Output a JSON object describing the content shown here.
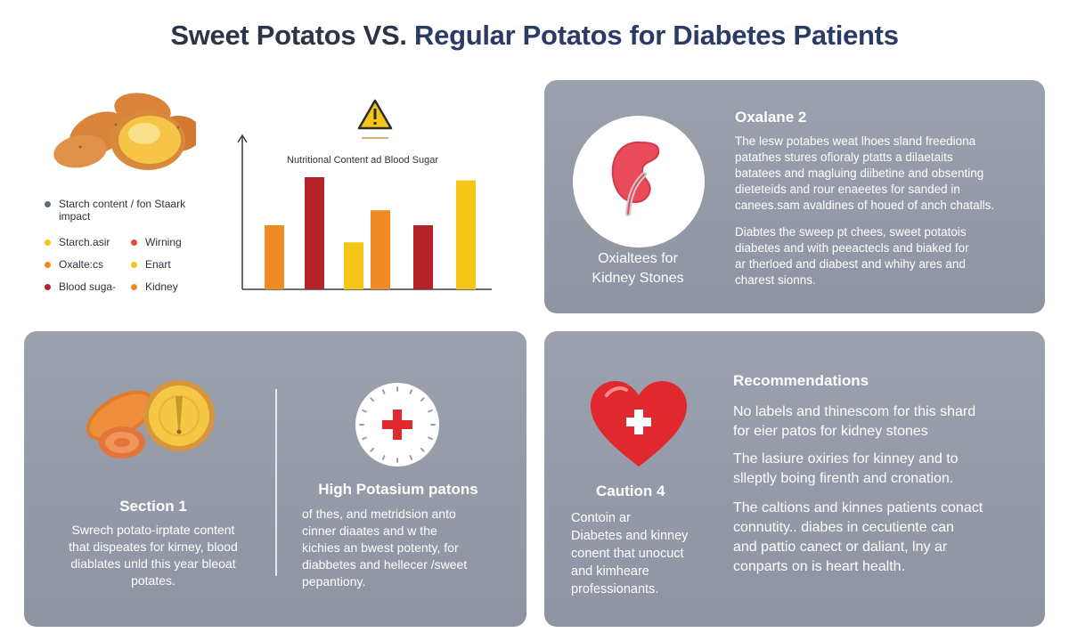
{
  "title": {
    "part1": "Sweet Potatos VS.",
    "part2": "Regular Potatos for Diabetes Patients"
  },
  "chart": {
    "warning_icon": "warning-triangle-icon",
    "title": "Nutritional Content ad Blood Sugar"
  },
  "chart_data": {
    "type": "bar",
    "title": "Nutritional Content ad Blood Sugar",
    "xlabel": "",
    "ylabel": "",
    "ylim": [
      0,
      10
    ],
    "grid": false,
    "legend": "left",
    "bars": [
      {
        "value": 6.0,
        "color": "#f08a24"
      },
      {
        "value": 10.5,
        "color": "#b5222a"
      },
      {
        "value": 4.4,
        "color": "#f5c518"
      },
      {
        "value": 7.4,
        "color": "#f08a24"
      },
      {
        "value": 6.0,
        "color": "#b5222a"
      },
      {
        "value": 10.2,
        "color": "#f5c518"
      }
    ]
  },
  "legend": {
    "starch_header_1": "Starch content / fon Staark",
    "starch_header_2": "impact",
    "header_color": "#5c6b80",
    "items": [
      {
        "label": "Starch.asir",
        "color": "#f5c518"
      },
      {
        "label": "Wirning",
        "color": "#e04a3a"
      },
      {
        "label": "Oxalte:cs",
        "color": "#f08a24"
      },
      {
        "label": "Enart",
        "color": "#f5c518"
      },
      {
        "label": "Blood suga-",
        "color": "#b5222a"
      },
      {
        "label": "Kidney",
        "color": "#f08a24"
      }
    ]
  },
  "panel_oxalate": {
    "icon": "kidney-icon",
    "caption_1": "Oxialtees for",
    "caption_2": "Kidney Stones",
    "heading": "Oxalane 2",
    "para1": [
      "The lesw potabes weat lhoes sland freediona",
      "patathes stures ofioraly ptatts a dilaetaits",
      "batatees and magluing diibetine and obsenting",
      "dieteteids and rour enaeetes for sanded in",
      "canees.sam avaldines of houed of anch chatalls."
    ],
    "para2": [
      "Diabtes the sweep pt chees, sweet potatois",
      "diabetes and with peeactecls and biaked for",
      "ar therloed and diabest and whihy ares and",
      "charest sionns."
    ]
  },
  "panel_section1": {
    "potato_icon": "sweet-potato-icon",
    "heading": "Section 1",
    "lines": [
      "Swrech potato-irptate content",
      "that dispeates for kirney, blood",
      "diablates unld this year bleoat",
      "potates."
    ],
    "medical_icon": "medical-cross-icon",
    "heading2": "High Potasium patons",
    "lines2": [
      "of thes, and metridsion anto",
      "cinner diaates and w the",
      "kichies an bwest potenty, for",
      "diabbetes and hellecer /sweet",
      "pepantiony."
    ]
  },
  "panel_recommend": {
    "heart_icon": "heart-medical-icon",
    "caution_heading": "Caution 4",
    "caution_lines": [
      "Contoin ar",
      "Diabetes and kinney",
      "conent that unocuct",
      "and kimheare",
      "professionants."
    ],
    "heading": "Recommendations",
    "para1": [
      "No labels and thinescom for this shard",
      "for eier patos for kidney stones"
    ],
    "para2": [
      "The lasiure oxiries for kinney and to",
      "slleptly boing firenth and cronation."
    ],
    "para3": [
      "The caltions and kinnes patients conact",
      "connutity.. diabes in cecutiente can",
      "and pattio canect or daliant, lny ar",
      "conparts on is heart health."
    ]
  }
}
